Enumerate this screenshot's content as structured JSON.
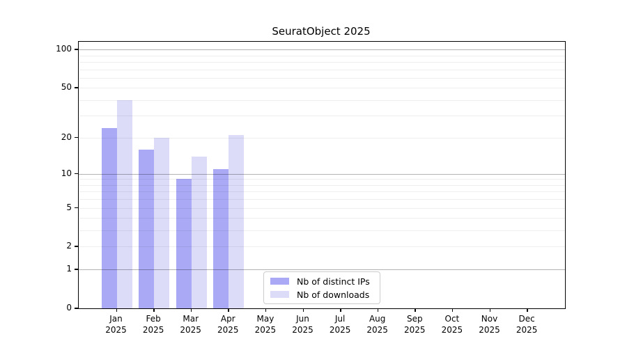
{
  "title": "SeuratObject 2025",
  "chart_data": {
    "type": "bar",
    "title": "SeuratObject 2025",
    "categories": [
      "Jan",
      "Feb",
      "Mar",
      "Apr",
      "May",
      "Jun",
      "Jul",
      "Aug",
      "Sep",
      "Oct",
      "Nov",
      "Dec"
    ],
    "year_label": "2025",
    "series": [
      {
        "name": "Nb of distinct IPs",
        "color": "#a9a9f5",
        "values": [
          24,
          16,
          9,
          11,
          0,
          0,
          0,
          0,
          0,
          0,
          0,
          0
        ]
      },
      {
        "name": "Nb of downloads",
        "color": "#dcdcf8",
        "values": [
          40,
          20,
          14,
          21,
          0,
          0,
          0,
          0,
          0,
          0,
          0,
          0
        ]
      }
    ],
    "xlabel": "",
    "ylabel": "",
    "yscale": "log1p",
    "ylim": [
      0,
      115
    ],
    "ytick_values": [
      0,
      1,
      2,
      5,
      10,
      20,
      50,
      100
    ],
    "grid_major_values": [
      1,
      10,
      100
    ],
    "grid_minor_values": [
      2,
      3,
      4,
      5,
      6,
      7,
      8,
      9,
      20,
      30,
      40,
      50,
      60,
      70,
      80,
      90
    ],
    "grid": "horizontal",
    "legend_position": "inside-bottom-center"
  }
}
